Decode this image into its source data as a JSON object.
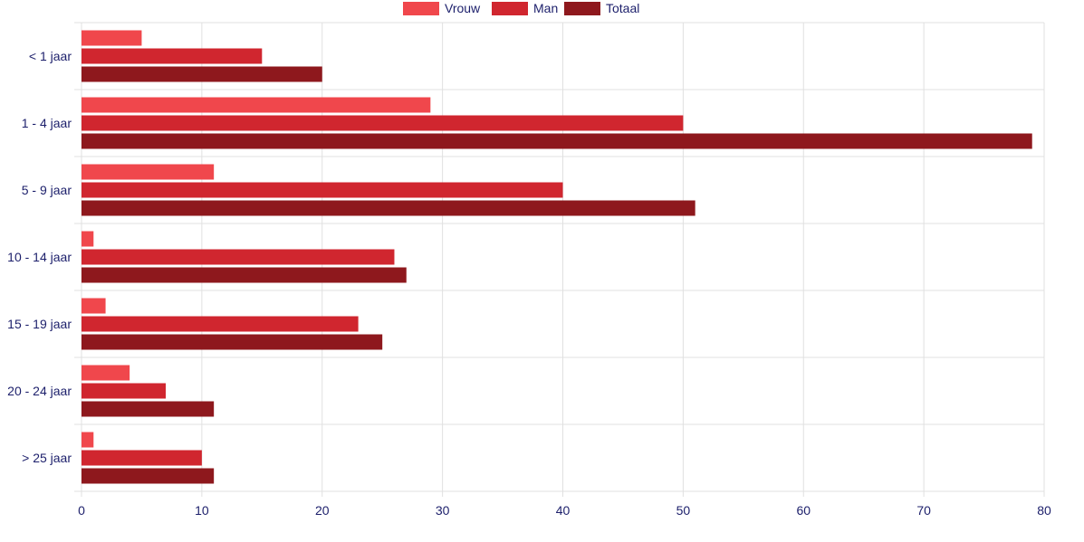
{
  "chart_data": {
    "type": "bar",
    "orientation": "horizontal",
    "categories": [
      "< 1 jaar",
      "1 - 4 jaar",
      "5 - 9 jaar",
      "10 - 14 jaar",
      "15 - 19 jaar",
      "20 - 24 jaar",
      "> 25 jaar"
    ],
    "series": [
      {
        "name": "Vrouw",
        "color": "#f0474c",
        "values": [
          5,
          29,
          11,
          1,
          2,
          4,
          1
        ]
      },
      {
        "name": "Man",
        "color": "#d0262f",
        "values": [
          15,
          50,
          40,
          26,
          23,
          7,
          10
        ]
      },
      {
        "name": "Totaal",
        "color": "#8e181d",
        "values": [
          20,
          79,
          51,
          27,
          25,
          11,
          11
        ]
      }
    ],
    "xlim": [
      0,
      80
    ],
    "xticks": [
      "0",
      "10",
      "20",
      "30",
      "40",
      "50",
      "60",
      "70",
      "80"
    ],
    "title": "",
    "xlabel": "",
    "ylabel": "",
    "legend_position": "top-center",
    "grid": true,
    "text_color": "#1c1f6b",
    "grid_color": "#e0e0e0"
  }
}
